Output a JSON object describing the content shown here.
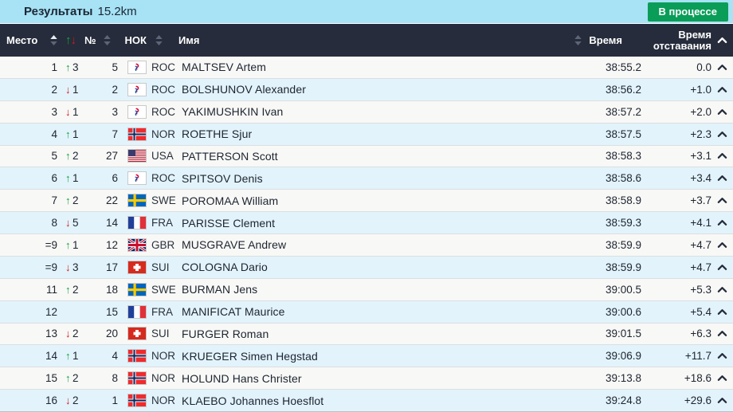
{
  "header_bar": {
    "title_bold": "Результаты",
    "title_distance": "15.2km",
    "status_button": "В процессе"
  },
  "table": {
    "columns": {
      "place": "Место",
      "bib": "№",
      "noc": "НОК",
      "name": "Имя",
      "time": "Время",
      "behind_line1": "Время",
      "behind_line2": "отставания"
    },
    "rows": [
      {
        "place": "1",
        "change_dir": "up",
        "change": "3",
        "bib": "5",
        "noc": "ROC",
        "name": "MALTSEV Artem",
        "time": "38:55.2",
        "behind": "0.0"
      },
      {
        "place": "2",
        "change_dir": "down",
        "change": "1",
        "bib": "2",
        "noc": "ROC",
        "name": "BOLSHUNOV Alexander",
        "time": "38:56.2",
        "behind": "+1.0"
      },
      {
        "place": "3",
        "change_dir": "down",
        "change": "1",
        "bib": "3",
        "noc": "ROC",
        "name": "YAKIMUSHKIN Ivan",
        "time": "38:57.2",
        "behind": "+2.0"
      },
      {
        "place": "4",
        "change_dir": "up",
        "change": "1",
        "bib": "7",
        "noc": "NOR",
        "name": "ROETHE Sjur",
        "time": "38:57.5",
        "behind": "+2.3"
      },
      {
        "place": "5",
        "change_dir": "up",
        "change": "2",
        "bib": "27",
        "noc": "USA",
        "name": "PATTERSON Scott",
        "time": "38:58.3",
        "behind": "+3.1"
      },
      {
        "place": "6",
        "change_dir": "up",
        "change": "1",
        "bib": "6",
        "noc": "ROC",
        "name": "SPITSOV Denis",
        "time": "38:58.6",
        "behind": "+3.4"
      },
      {
        "place": "7",
        "change_dir": "up",
        "change": "2",
        "bib": "22",
        "noc": "SWE",
        "name": "POROMAA William",
        "time": "38:58.9",
        "behind": "+3.7"
      },
      {
        "place": "8",
        "change_dir": "down",
        "change": "5",
        "bib": "14",
        "noc": "FRA",
        "name": "PARISSE Clement",
        "time": "38:59.3",
        "behind": "+4.1"
      },
      {
        "place": "=9",
        "change_dir": "up",
        "change": "1",
        "bib": "12",
        "noc": "GBR",
        "name": "MUSGRAVE Andrew",
        "time": "38:59.9",
        "behind": "+4.7"
      },
      {
        "place": "=9",
        "change_dir": "down",
        "change": "3",
        "bib": "17",
        "noc": "SUI",
        "name": "COLOGNA Dario",
        "time": "38:59.9",
        "behind": "+4.7"
      },
      {
        "place": "11",
        "change_dir": "up",
        "change": "2",
        "bib": "18",
        "noc": "SWE",
        "name": "BURMAN Jens",
        "time": "39:00.5",
        "behind": "+5.3"
      },
      {
        "place": "12",
        "change_dir": null,
        "change": "",
        "bib": "15",
        "noc": "FRA",
        "name": "MANIFICAT Maurice",
        "time": "39:00.6",
        "behind": "+5.4"
      },
      {
        "place": "13",
        "change_dir": "down",
        "change": "2",
        "bib": "20",
        "noc": "SUI",
        "name": "FURGER Roman",
        "time": "39:01.5",
        "behind": "+6.3"
      },
      {
        "place": "14",
        "change_dir": "up",
        "change": "1",
        "bib": "4",
        "noc": "NOR",
        "name": "KRUEGER Simen Hegstad",
        "time": "39:06.9",
        "behind": "+11.7"
      },
      {
        "place": "15",
        "change_dir": "up",
        "change": "2",
        "bib": "8",
        "noc": "NOR",
        "name": "HOLUND Hans Christer",
        "time": "39:13.8",
        "behind": "+18.6"
      },
      {
        "place": "16",
        "change_dir": "down",
        "change": "2",
        "bib": "1",
        "noc": "NOR",
        "name": "KLAEBO Johannes Hoesflot",
        "time": "39:24.8",
        "behind": "+29.6"
      }
    ]
  },
  "colors": {
    "topbar_bg": "#a7e2f5",
    "status_button_bg": "#0a9d58",
    "table_header_bg": "#262c3b",
    "row_alt_bg": "#e2f3fb",
    "rank_up_green": "#0ea23c",
    "rank_down_red": "#cf1b1b"
  }
}
